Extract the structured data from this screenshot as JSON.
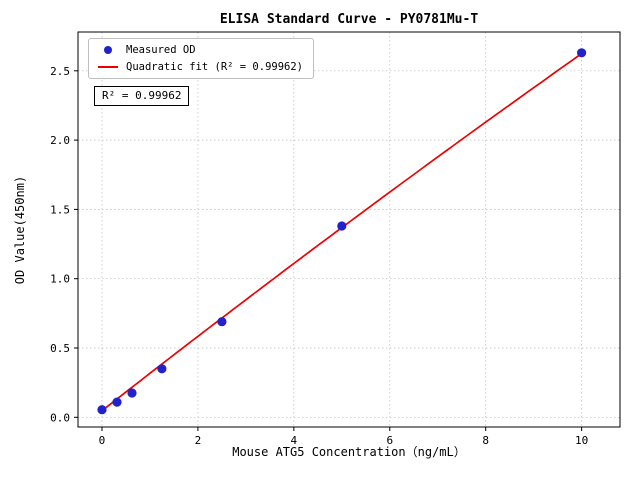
{
  "chart_data": {
    "type": "scatter",
    "title": "ELISA Standard Curve - PY0781Mu-T",
    "xlabel": "Mouse ATG5 Concentration（ng/mL）",
    "ylabel": "OD Value(450nm)",
    "xlim": [
      -0.5,
      10.8
    ],
    "ylim": [
      -0.07,
      2.78
    ],
    "xticks": [
      0,
      2,
      4,
      6,
      8,
      10
    ],
    "yticks": [
      0.0,
      0.5,
      1.0,
      1.5,
      2.0,
      2.5
    ],
    "grid": true,
    "legend_position": "upper-left",
    "annotation": "R² = 0.99962",
    "r_squared": 0.99962,
    "series": [
      {
        "name": "Measured OD",
        "kind": "scatter",
        "color": "#2222cc",
        "x": [
          0,
          0.3125,
          0.625,
          1.25,
          2.5,
          5,
          10
        ],
        "y": [
          0.055,
          0.11,
          0.175,
          0.35,
          0.69,
          1.38,
          2.63
        ]
      },
      {
        "name": "Quadratic fit (R² = 0.99962)",
        "kind": "line",
        "color": "#ee0000",
        "fit": {
          "a": -0.0013,
          "b": 0.2706,
          "c": 0.048,
          "x_start": 0,
          "x_end": 10
        }
      }
    ]
  }
}
